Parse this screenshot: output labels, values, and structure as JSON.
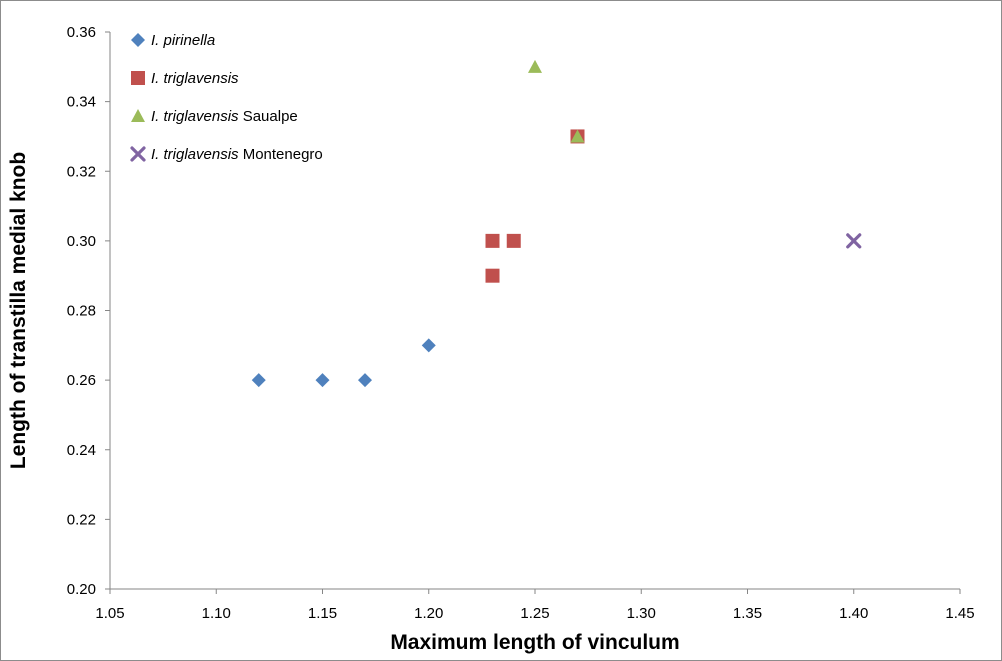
{
  "chart_data": {
    "type": "scatter",
    "xlabel": "Maximum length of vinculum",
    "ylabel": "Length of transtilla medial knob",
    "xlim": [
      1.05,
      1.45
    ],
    "ylim": [
      0.2,
      0.36
    ],
    "xticks": [
      "1.05",
      "1.10",
      "1.15",
      "1.20",
      "1.25",
      "1.30",
      "1.35",
      "1.40",
      "1.45"
    ],
    "yticks": [
      "0.20",
      "0.22",
      "0.24",
      "0.26",
      "0.28",
      "0.30",
      "0.32",
      "0.34",
      "0.36"
    ],
    "grid": false,
    "legend_position": "top-left",
    "series": [
      {
        "name_italic": "I. pirinella",
        "name_suffix": "",
        "marker": "diamond",
        "color": "#4f81bd",
        "points": [
          [
            1.12,
            0.26
          ],
          [
            1.15,
            0.26
          ],
          [
            1.17,
            0.26
          ],
          [
            1.2,
            0.27
          ]
        ]
      },
      {
        "name_italic": "I. triglavensis",
        "name_suffix": "",
        "marker": "square",
        "color": "#c0504d",
        "points": [
          [
            1.23,
            0.3
          ],
          [
            1.24,
            0.3
          ],
          [
            1.23,
            0.29
          ],
          [
            1.27,
            0.33
          ]
        ]
      },
      {
        "name_italic": "I. triglavensis",
        "name_suffix": " Saualpe",
        "marker": "triangle",
        "color": "#9bbb59",
        "points": [
          [
            1.25,
            0.35
          ],
          [
            1.27,
            0.33
          ]
        ]
      },
      {
        "name_italic": "I. triglavensis",
        "name_suffix": " Montenegro",
        "marker": "x",
        "color": "#8064a2",
        "points": [
          [
            1.4,
            0.3
          ]
        ]
      }
    ]
  }
}
